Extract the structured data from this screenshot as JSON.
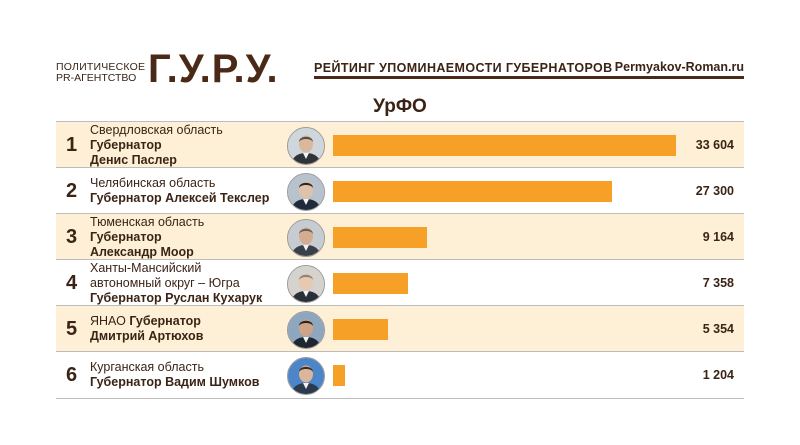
{
  "header": {
    "agency_line1": "ПОЛИТИЧЕСКОЕ",
    "agency_line2": "PR-АГЕНТСТВО",
    "logo": "Г.У.Р.У.",
    "title": "РЕЙТИНГ УПОМИНАЕМОСТИ ГУБЕРНАТОРОВ",
    "site": "Permyakov-Roman.ru"
  },
  "colors": {
    "bar": "#f7a028",
    "odd_row": "#fdf0d6",
    "text": "#3b2416"
  },
  "chart_data": {
    "type": "bar",
    "orientation": "horizontal",
    "title": "УрФО",
    "xlim": [
      0,
      33604
    ],
    "rows": [
      {
        "rank": "1",
        "lines": [
          {
            "text": "Свердловская область",
            "bold": false
          },
          {
            "text": "Губернатор",
            "bold": true
          },
          {
            "text": "Денис Паслер",
            "bold": true
          }
        ],
        "value": 33604,
        "value_label": "33 604",
        "avatar": "governor-photo"
      },
      {
        "rank": "2",
        "lines": [
          {
            "text": "Челябинская область",
            "bold": false
          },
          {
            "text": "Губернатор Алексей Текслер",
            "bold": true
          }
        ],
        "value": 27300,
        "value_label": "27 300",
        "avatar": "governor-photo"
      },
      {
        "rank": "3",
        "lines": [
          {
            "text": "Тюменская область",
            "bold": false
          },
          {
            "text": "Губернатор",
            "bold": true
          },
          {
            "text": "Александр Моор",
            "bold": true
          }
        ],
        "value": 9164,
        "value_label": "9 164",
        "avatar": "governor-photo"
      },
      {
        "rank": "4",
        "lines": [
          {
            "text": "Ханты-Мансийский",
            "bold": false
          },
          {
            "text": "автономный округ – Югра",
            "bold": false
          },
          {
            "text": "Губернатор Руслан Кухарук",
            "bold": true
          }
        ],
        "value": 7358,
        "value_label": "7 358",
        "avatar": "governor-photo"
      },
      {
        "rank": "5",
        "lines": [
          {
            "text": "ЯНАО",
            "bold": false,
            "inline_bold": "Губернатор"
          },
          {
            "text": "Дмитрий Артюхов",
            "bold": true
          }
        ],
        "value": 5354,
        "value_label": "5 354",
        "avatar": "governor-photo"
      },
      {
        "rank": "6",
        "lines": [
          {
            "text": "Курганская область",
            "bold": false
          },
          {
            "text": "Губернатор Вадим Шумков",
            "bold": true
          }
        ],
        "value": 1204,
        "value_label": "1 204",
        "avatar": "governor-photo"
      }
    ]
  }
}
